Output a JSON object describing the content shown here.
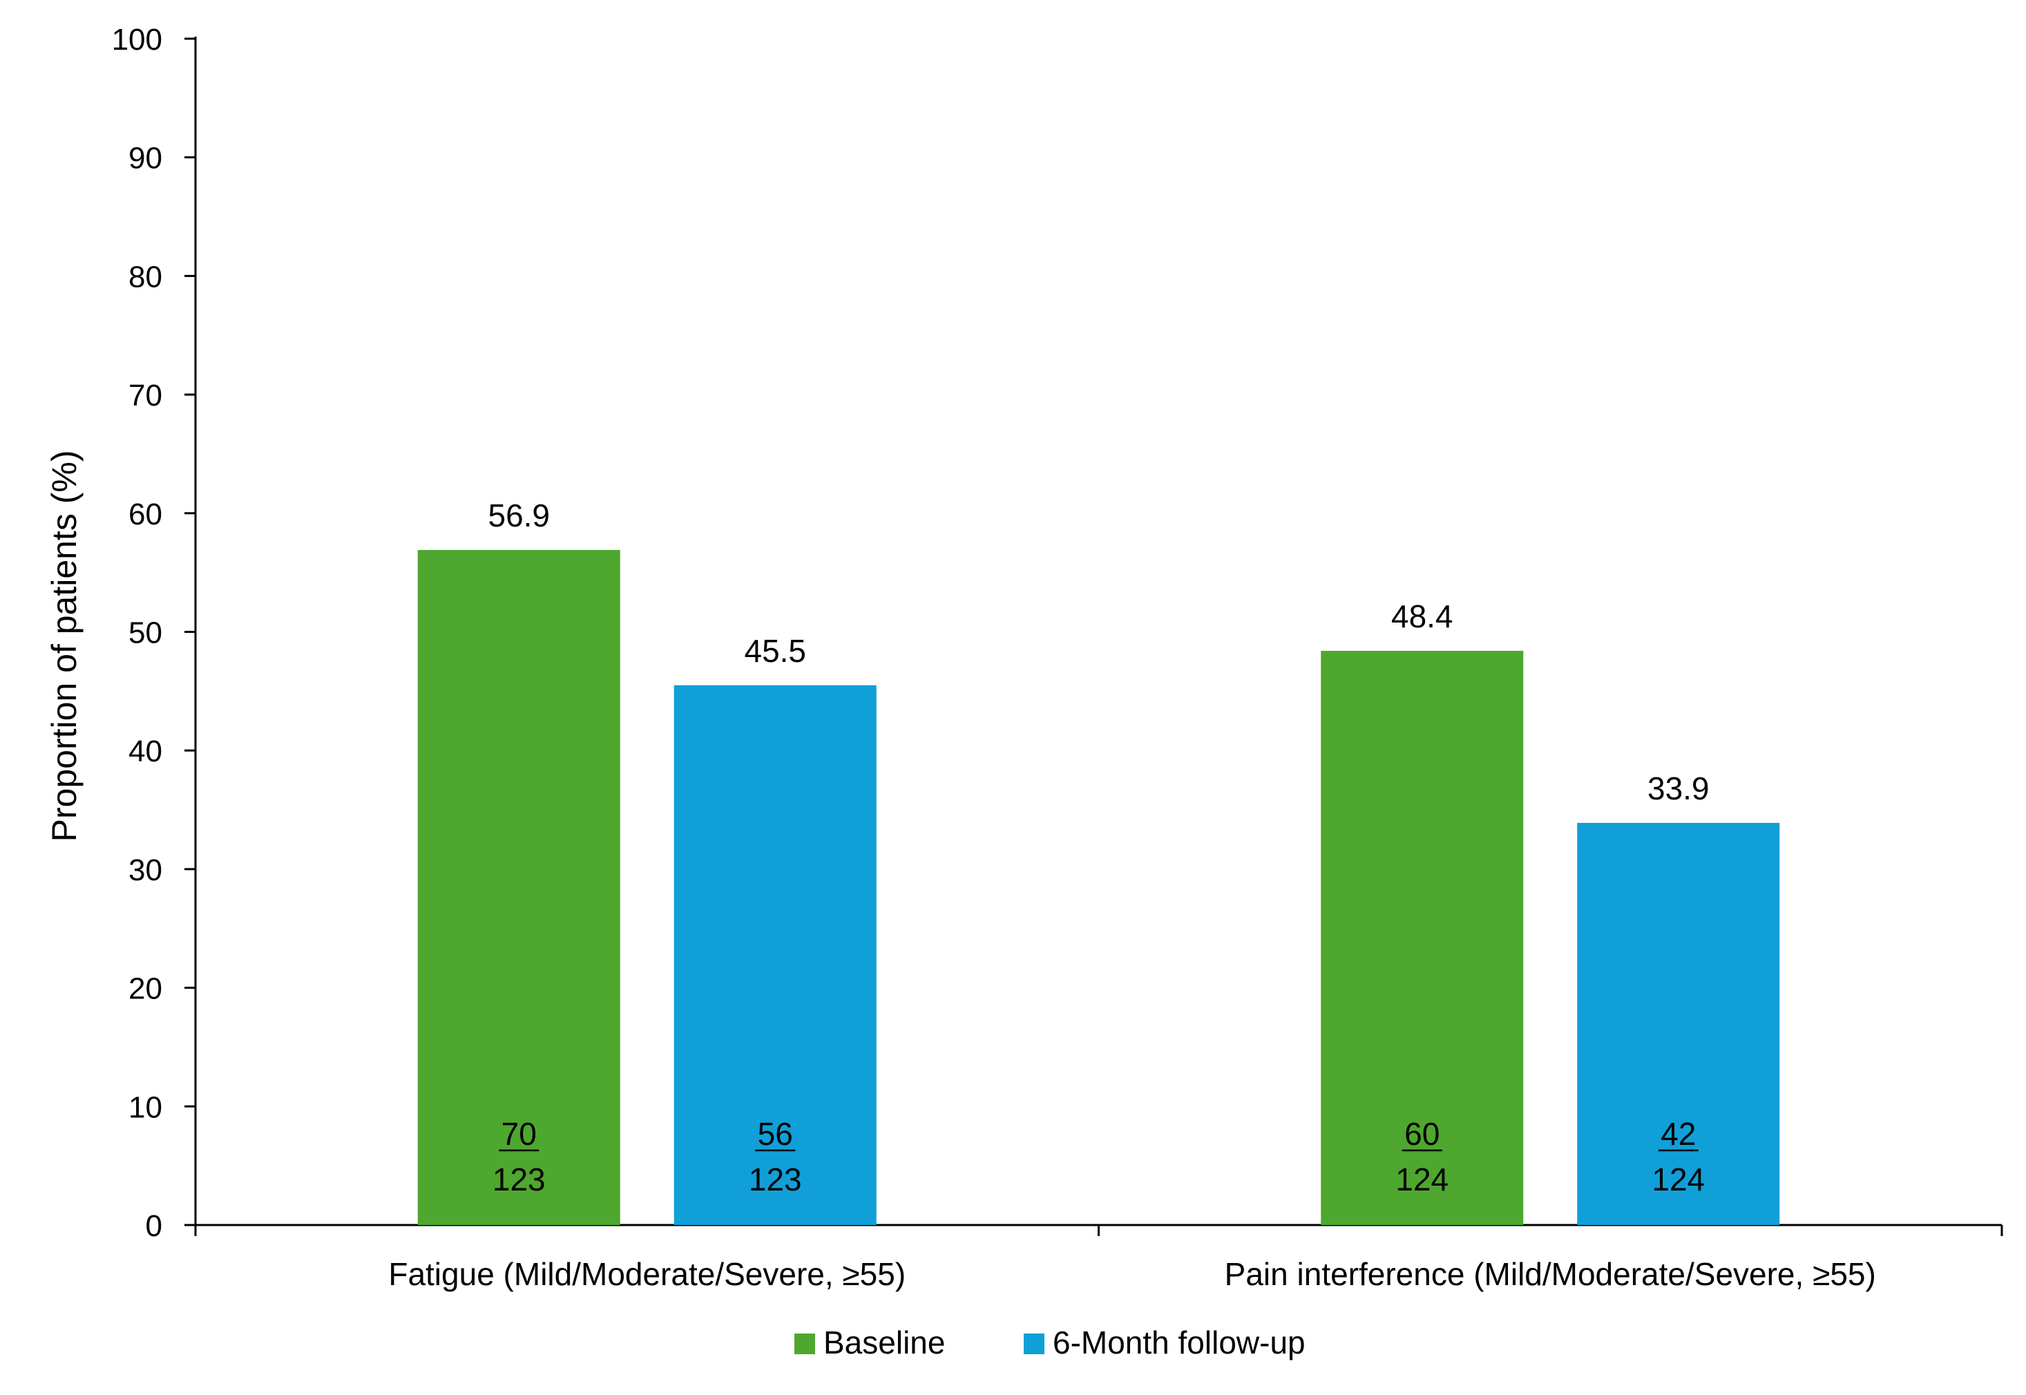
{
  "chart_data": {
    "type": "bar",
    "title": "",
    "xlabel": "",
    "ylabel": "Proportion of patients (%)",
    "ylim": [
      0,
      100
    ],
    "yticks": [
      0,
      10,
      20,
      30,
      40,
      50,
      60,
      70,
      80,
      90,
      100
    ],
    "grid": false,
    "legend_position": "bottom",
    "categories": [
      "Fatigue (Mild/Moderate/Severe, ≥55)",
      "Pain interference (Mild/Moderate/Severe, ≥55)"
    ],
    "series": [
      {
        "name": "Baseline",
        "color": "#4EA72E",
        "values": [
          56.9,
          48.4
        ],
        "value_labels": [
          "56.9",
          "48.4"
        ],
        "numerators": [
          "70",
          "60"
        ],
        "denominators": [
          "123",
          "124"
        ]
      },
      {
        "name": "6-Month follow-up",
        "color": "#119FD8",
        "values": [
          45.5,
          33.9
        ],
        "value_labels": [
          "45.5",
          "33.9"
        ],
        "numerators": [
          "56",
          "42"
        ],
        "denominators": [
          "123",
          "124"
        ]
      }
    ]
  }
}
